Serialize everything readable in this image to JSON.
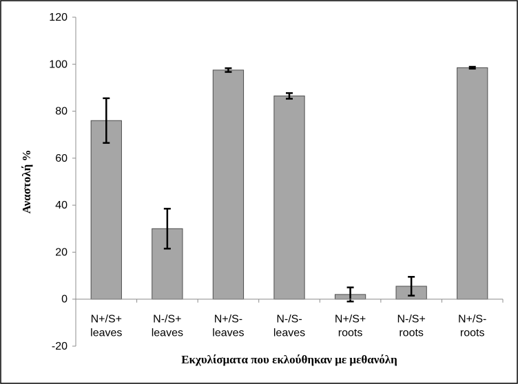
{
  "chart_data": {
    "type": "bar",
    "title": "",
    "xlabel": "Εκχυλίσματα που εκλούθηκαν με μεθανόλη",
    "ylabel": "Αναστολή %",
    "ylim": [
      -20,
      120
    ],
    "yticks": [
      -20,
      0,
      20,
      40,
      60,
      80,
      100,
      120
    ],
    "grid": false,
    "categories": [
      [
        "N+/S+",
        "leaves"
      ],
      [
        "N-/S+",
        "leaves"
      ],
      [
        "N+/S-",
        "leaves"
      ],
      [
        "N-/S-",
        "leaves"
      ],
      [
        "N+/S+",
        "roots"
      ],
      [
        "N-/S+",
        "roots"
      ],
      [
        "N+/S-",
        "roots"
      ]
    ],
    "values": [
      76,
      30,
      97.5,
      86.5,
      2,
      5.5,
      98.5
    ],
    "errors": [
      9.5,
      8.5,
      0.8,
      1.2,
      3,
      4,
      0.4
    ],
    "colors": {
      "bar": "#a6a6a6",
      "bar_edge": "#4d4d4d",
      "error": "#000000"
    }
  }
}
